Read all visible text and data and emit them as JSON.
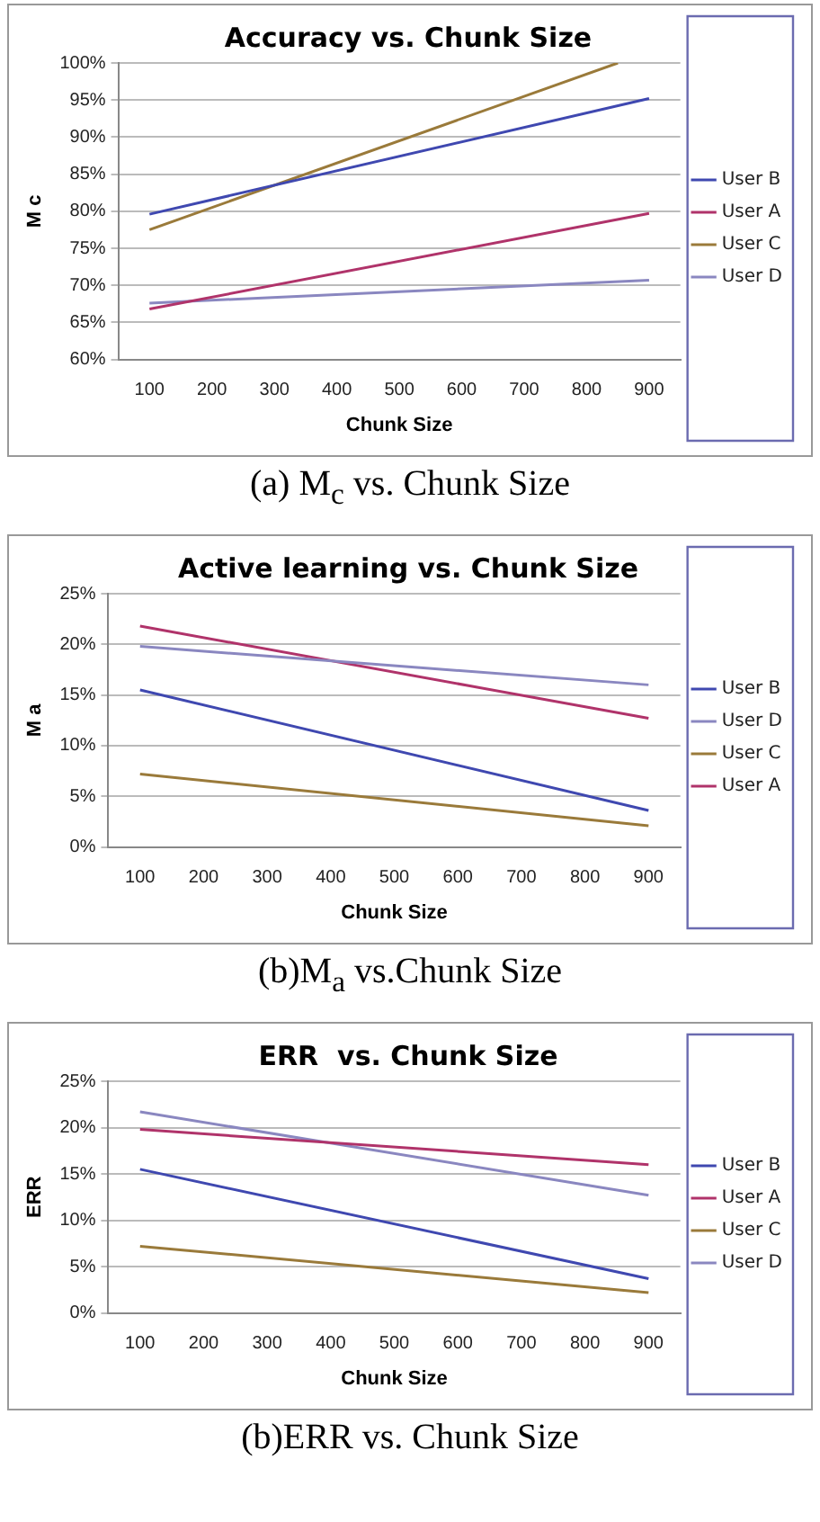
{
  "chart_data": [
    {
      "type": "line",
      "title": "Accuracy vs. Chunk Size",
      "xlabel": "Chunk Size",
      "ylabel": "M c",
      "annotations": [
        "(a) M$_{c}$ vs. Chunk Size"
      ],
      "xlim": [
        50,
        950
      ],
      "xticks": [
        100,
        200,
        300,
        400,
        500,
        600,
        700,
        800,
        900
      ],
      "ylim": [
        60,
        100
      ],
      "yticks": [
        {
          "value": 60,
          "label": "60%"
        },
        {
          "value": 65,
          "label": "65%"
        },
        {
          "value": 70,
          "label": "70%"
        },
        {
          "value": 75,
          "label": "75%"
        },
        {
          "value": 80,
          "label": "80%"
        },
        {
          "value": 85,
          "label": "85%"
        },
        {
          "value": 90,
          "label": "90%"
        },
        {
          "value": 95,
          "label": "95%"
        },
        {
          "value": 100,
          "label": "100%"
        }
      ],
      "grid": "y",
      "legend": "right",
      "marker": "none",
      "series": [
        {
          "name": "User B",
          "color": "#3f48b0",
          "x": [
            100,
            900
          ],
          "values": [
            79.6,
            95.2
          ]
        },
        {
          "name": "User A",
          "color": "#b0336a",
          "x": [
            100,
            900
          ],
          "values": [
            66.8,
            79.7
          ]
        },
        {
          "name": "User C",
          "color": "#9a7a3a",
          "x": [
            100,
            850
          ],
          "values": [
            77.5,
            100
          ]
        },
        {
          "name": "User D",
          "color": "#8a87c0",
          "x": [
            100,
            900
          ],
          "values": [
            67.6,
            70.7
          ]
        }
      ]
    },
    {
      "type": "line",
      "title": "Active learning vs. Chunk Size",
      "xlabel": "Chunk Size",
      "ylabel": "M a",
      "annotations": [
        "(b)M$_{a}$ vs.Chunk Size"
      ],
      "xlim": [
        50,
        950
      ],
      "xticks": [
        100,
        200,
        300,
        400,
        500,
        600,
        700,
        800,
        900
      ],
      "ylim": [
        0,
        25
      ],
      "yticks": [
        {
          "value": 0,
          "label": "0%"
        },
        {
          "value": 5,
          "label": "5%"
        },
        {
          "value": 10,
          "label": "10%"
        },
        {
          "value": 15,
          "label": "15%"
        },
        {
          "value": 20,
          "label": "20%"
        },
        {
          "value": 25,
          "label": "25%"
        }
      ],
      "grid": "y",
      "legend": "right",
      "marker": "none",
      "series": [
        {
          "name": "User B",
          "color": "#3f48b0",
          "x": [
            100,
            900
          ],
          "values": [
            15.5,
            3.6
          ]
        },
        {
          "name": "User D",
          "color": "#8a87c0",
          "x": [
            100,
            900
          ],
          "values": [
            19.8,
            16.0
          ]
        },
        {
          "name": "User C",
          "color": "#9a7a3a",
          "x": [
            100,
            900
          ],
          "values": [
            7.2,
            2.1
          ]
        },
        {
          "name": "User A",
          "color": "#b0336a",
          "x": [
            100,
            900
          ],
          "values": [
            21.8,
            12.7
          ]
        }
      ]
    },
    {
      "type": "line",
      "title": "ERR  vs. Chunk Size",
      "xlabel": "Chunk Size",
      "ylabel": "ERR",
      "annotations": [
        "(b)ERR vs. Chunk Size"
      ],
      "xlim": [
        50,
        950
      ],
      "xticks": [
        100,
        200,
        300,
        400,
        500,
        600,
        700,
        800,
        900
      ],
      "ylim": [
        0,
        25
      ],
      "yticks": [
        {
          "value": 0,
          "label": "0%"
        },
        {
          "value": 5,
          "label": "5%"
        },
        {
          "value": 10,
          "label": "10%"
        },
        {
          "value": 15,
          "label": "15%"
        },
        {
          "value": 20,
          "label": "20%"
        },
        {
          "value": 25,
          "label": "25%"
        }
      ],
      "grid": "y",
      "legend": "right",
      "marker": "none",
      "series": [
        {
          "name": "User B",
          "color": "#3f48b0",
          "x": [
            100,
            900
          ],
          "values": [
            15.5,
            3.7
          ]
        },
        {
          "name": "User A",
          "color": "#b0336a",
          "x": [
            100,
            900
          ],
          "values": [
            19.8,
            16.0
          ]
        },
        {
          "name": "User C",
          "color": "#9a7a3a",
          "x": [
            100,
            900
          ],
          "values": [
            7.2,
            2.2
          ]
        },
        {
          "name": "User D",
          "color": "#8a87c0",
          "x": [
            100,
            900
          ],
          "values": [
            21.7,
            12.7
          ]
        }
      ]
    }
  ]
}
